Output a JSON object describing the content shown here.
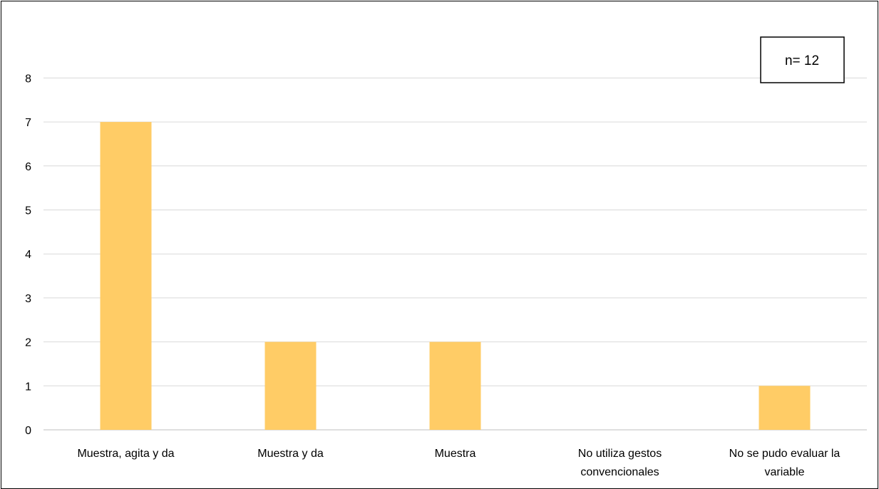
{
  "chart_data": {
    "type": "bar",
    "categories": [
      [
        "Muestra, agita y da"
      ],
      [
        "Muestra y da"
      ],
      [
        "Muestra"
      ],
      [
        "No utiliza gestos",
        "convencionales"
      ],
      [
        "No se pudo evaluar la",
        "variable"
      ]
    ],
    "values": [
      7,
      2,
      2,
      0,
      1
    ],
    "ylim": [
      0,
      8
    ],
    "yticks": [
      0,
      1,
      2,
      3,
      4,
      5,
      6,
      7,
      8
    ],
    "grid": true,
    "legend": "none",
    "annotation": "n= 12",
    "colors": {
      "bar": "#FFCC66",
      "grid": "#D9D9D9",
      "axis": "#BFBFBF",
      "annotation_border": "#000000"
    }
  }
}
